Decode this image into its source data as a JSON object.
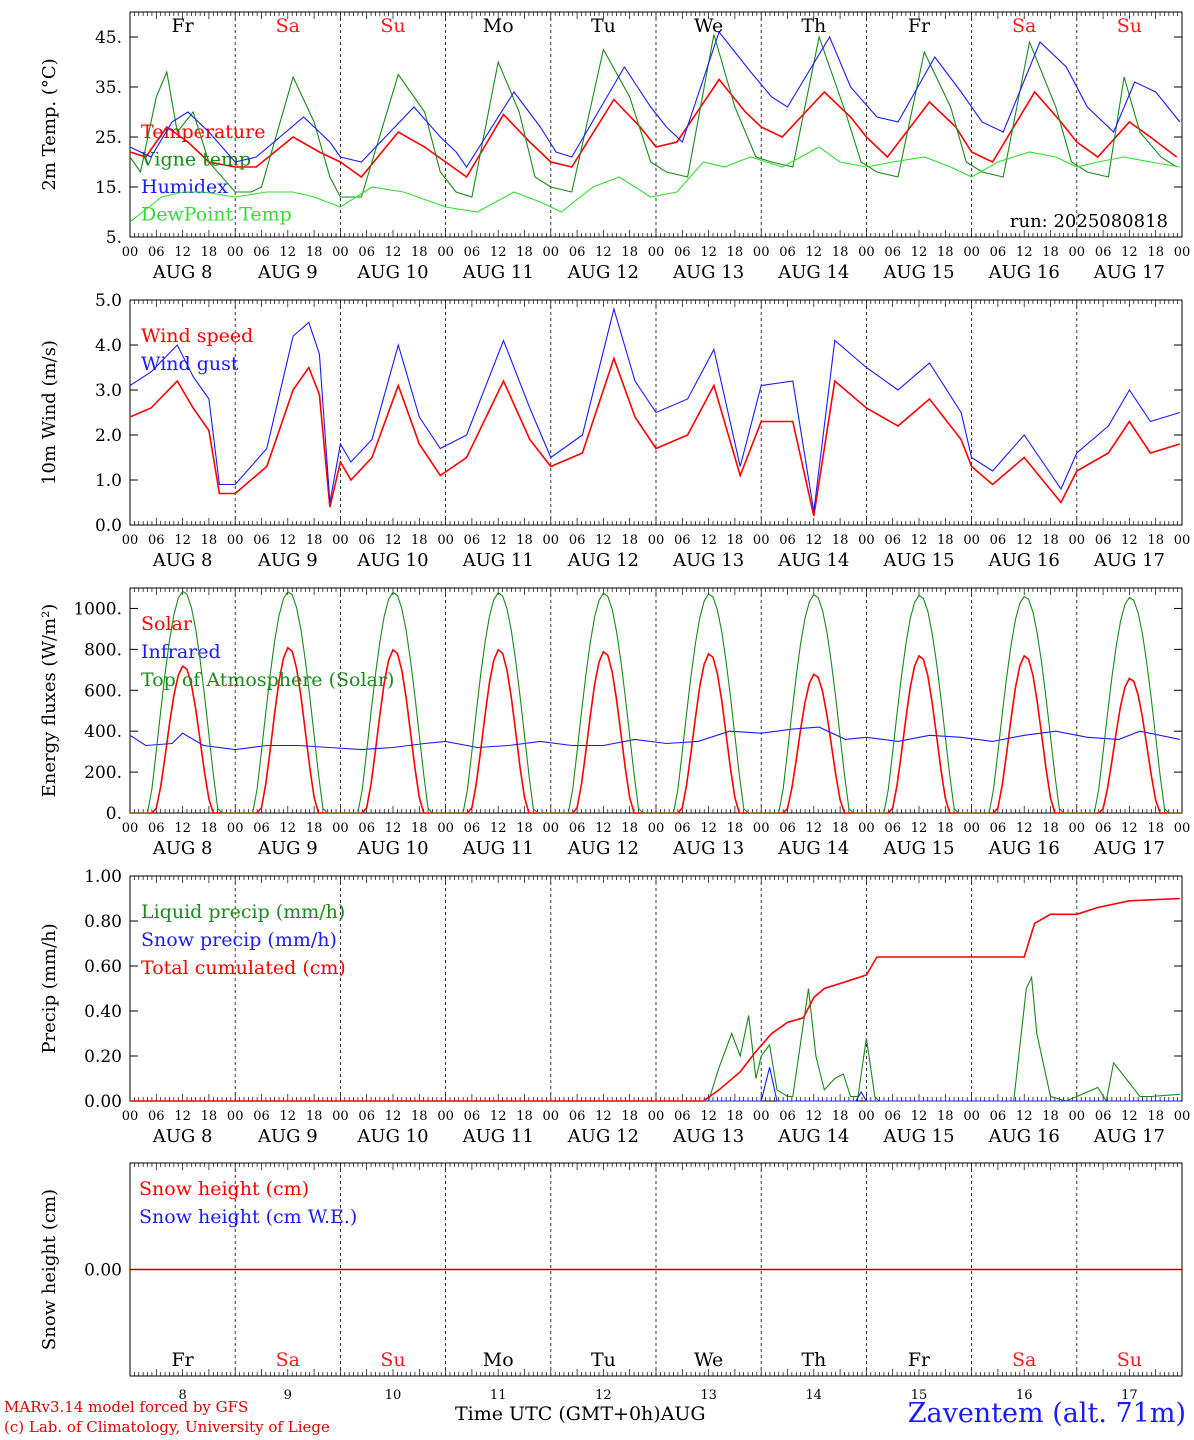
{
  "colors": {
    "red": "#ff0000",
    "green": "#1a8a1a",
    "blue": "#1a1aff",
    "light_green": "#33dd33",
    "weekend": "#ff1a1a",
    "black": "#000000"
  },
  "days": [
    {
      "weekday": "Fr",
      "date": "AUG  8",
      "num": "8",
      "weekend": false
    },
    {
      "weekday": "Sa",
      "date": "AUG  9",
      "num": "9",
      "weekend": true
    },
    {
      "weekday": "Su",
      "date": "AUG 10",
      "num": "10",
      "weekend": true
    },
    {
      "weekday": "Mo",
      "date": "AUG 11",
      "num": "11",
      "weekend": false
    },
    {
      "weekday": "Tu",
      "date": "AUG 12",
      "num": "12",
      "weekend": false
    },
    {
      "weekday": "We",
      "date": "AUG 13",
      "num": "13",
      "weekend": false
    },
    {
      "weekday": "Th",
      "date": "AUG 14",
      "num": "14",
      "weekend": false
    },
    {
      "weekday": "Fr",
      "date": "AUG 15",
      "num": "15",
      "weekend": false
    },
    {
      "weekday": "Sa",
      "date": "AUG 16",
      "num": "16",
      "weekend": true
    },
    {
      "weekday": "Su",
      "date": "AUG 17",
      "num": "17",
      "weekend": true
    }
  ],
  "hour_ticks": [
    "00",
    "06",
    "12",
    "18"
  ],
  "footer": {
    "credits_line1": "MARv3.14 model forced by GFS",
    "credits_line2": "(c) Lab. of Climatology, University of Liege",
    "x_title": "Time UTC (GMT+0h)AUG",
    "location": "Zaventem (alt. 71m)"
  },
  "chart_data": [
    {
      "type": "line",
      "ylabel": "2m Temp. (°C)",
      "ylim": [
        5,
        50
      ],
      "yticks": [
        "45.",
        "35.",
        "25.",
        "15.",
        "5."
      ],
      "ytick_values": [
        45,
        35,
        25,
        15,
        5
      ],
      "x_unit": "days from AUG 8 00 UTC",
      "annotation": "run: 2025080818",
      "series": [
        {
          "name": "Temperature",
          "color": "#ff0000",
          "x": [
            0,
            0.15,
            0.35,
            0.55,
            0.75,
            1.0,
            1.2,
            1.55,
            1.8,
            2.0,
            2.2,
            2.55,
            2.8,
            3.0,
            3.2,
            3.55,
            3.8,
            4.0,
            4.2,
            4.6,
            4.85,
            5.0,
            5.2,
            5.6,
            5.85,
            6.0,
            6.2,
            6.6,
            6.85,
            7.0,
            7.2,
            7.6,
            7.85,
            8.0,
            8.2,
            8.6,
            8.85,
            9.0,
            9.2,
            9.5,
            9.7,
            9.95
          ],
          "y": [
            22,
            21,
            27,
            24,
            20,
            19,
            19,
            25,
            22,
            20,
            17,
            26,
            23,
            20,
            17,
            29.5,
            24,
            20,
            19,
            32.5,
            27,
            23,
            24,
            36.5,
            30,
            27,
            25,
            34,
            29,
            25,
            21,
            32,
            27,
            22,
            20,
            34,
            28,
            24,
            21,
            28,
            25,
            21
          ]
        },
        {
          "name": "Vigne temp",
          "color": "#1a8a1a",
          "x": [
            0,
            0.1,
            0.25,
            0.35,
            0.45,
            0.6,
            0.75,
            1.0,
            1.15,
            1.25,
            1.55,
            1.75,
            1.9,
            2.0,
            2.2,
            2.55,
            2.8,
            2.95,
            3.1,
            3.25,
            3.5,
            3.7,
            3.85,
            4.0,
            4.2,
            4.5,
            4.75,
            4.95,
            5.1,
            5.3,
            5.55,
            5.75,
            5.95,
            6.1,
            6.3,
            6.55,
            6.8,
            6.95,
            7.1,
            7.3,
            7.55,
            7.8,
            7.95,
            8.1,
            8.3,
            8.55,
            8.8,
            8.95,
            9.1,
            9.3,
            9.45,
            9.6,
            9.8,
            9.95
          ],
          "y": [
            21,
            18,
            33,
            38,
            26,
            30,
            20,
            14,
            14,
            15,
            37,
            28,
            17,
            13,
            13,
            37.5,
            30,
            18,
            14,
            13,
            40,
            30,
            17,
            15,
            14,
            42.5,
            33,
            20,
            18,
            17,
            45.5,
            31,
            21,
            20,
            19,
            45,
            30,
            20,
            18,
            17,
            42,
            31,
            20,
            18,
            17,
            44,
            31,
            20,
            18,
            17,
            37,
            26,
            21,
            19
          ]
        },
        {
          "name": "Humidex",
          "color": "#1a1aff",
          "x": [
            0,
            0.2,
            0.4,
            0.55,
            0.75,
            1.0,
            1.2,
            1.65,
            1.9,
            2.0,
            2.2,
            2.7,
            2.95,
            3.1,
            3.2,
            3.65,
            3.9,
            4.05,
            4.2,
            4.7,
            4.95,
            5.1,
            5.25,
            5.6,
            5.9,
            6.1,
            6.25,
            6.65,
            6.85,
            7.1,
            7.3,
            7.65,
            7.9,
            8.1,
            8.3,
            8.65,
            8.9,
            9.1,
            9.35,
            9.55,
            9.75,
            9.98
          ],
          "y": [
            23,
            21,
            28,
            30,
            26,
            20,
            21,
            29,
            24,
            21,
            20,
            31,
            25,
            22,
            19,
            34,
            27,
            22,
            21,
            39,
            31,
            27,
            24,
            46,
            38,
            33,
            31,
            45,
            35,
            29,
            28,
            41,
            34,
            28,
            26,
            44,
            39,
            31,
            26,
            36,
            34,
            28
          ]
        },
        {
          "name": "DewPoint Temp",
          "color": "#33dd33",
          "x": [
            0,
            0.3,
            0.5,
            0.7,
            1.0,
            1.3,
            1.55,
            1.75,
            2.0,
            2.3,
            2.6,
            3.0,
            3.3,
            3.65,
            3.9,
            4.1,
            4.4,
            4.65,
            4.95,
            5.2,
            5.45,
            5.65,
            5.9,
            6.2,
            6.55,
            6.75,
            7.0,
            7.25,
            7.55,
            7.8,
            8.0,
            8.25,
            8.55,
            8.8,
            9.0,
            9.2,
            9.45,
            9.7,
            9.98
          ],
          "y": [
            8,
            13,
            14,
            14,
            13,
            14,
            14,
            13,
            11,
            15,
            14,
            11,
            10,
            14,
            12,
            10,
            15,
            17,
            13,
            14,
            20,
            19,
            21,
            19,
            23,
            20,
            19,
            20,
            21,
            19,
            17,
            20,
            22,
            21,
            19,
            20,
            21,
            20,
            19
          ]
        }
      ]
    },
    {
      "type": "line",
      "ylabel": "10m Wind (m/s)",
      "ylim": [
        0,
        5
      ],
      "yticks": [
        "5.0",
        "4.0",
        "3.0",
        "2.0",
        "1.0",
        "0.0"
      ],
      "ytick_values": [
        5,
        4,
        3,
        2,
        1,
        0
      ],
      "x_unit": "days from AUG 8 00 UTC",
      "series": [
        {
          "name": "Wind speed",
          "color": "#ff0000",
          "x": [
            0,
            0.2,
            0.45,
            0.6,
            0.75,
            0.85,
            1.0,
            1.3,
            1.55,
            1.7,
            1.8,
            1.9,
            2.0,
            2.1,
            2.3,
            2.55,
            2.75,
            2.95,
            3.2,
            3.55,
            3.8,
            4.0,
            4.3,
            4.6,
            4.8,
            5.0,
            5.3,
            5.55,
            5.8,
            6.0,
            6.3,
            6.5,
            6.7,
            7.0,
            7.3,
            7.6,
            7.9,
            8.0,
            8.2,
            8.5,
            8.85,
            9.0,
            9.3,
            9.5,
            9.7,
            9.98
          ],
          "y": [
            2.4,
            2.6,
            3.2,
            2.6,
            2.1,
            0.7,
            0.7,
            1.3,
            3.0,
            3.5,
            2.9,
            0.4,
            1.4,
            1.0,
            1.5,
            3.1,
            1.8,
            1.1,
            1.5,
            3.2,
            1.9,
            1.3,
            1.6,
            3.7,
            2.4,
            1.7,
            2.0,
            3.1,
            1.1,
            2.3,
            2.3,
            0.2,
            3.2,
            2.6,
            2.2,
            2.8,
            1.9,
            1.3,
            0.9,
            1.5,
            0.5,
            1.2,
            1.6,
            2.3,
            1.6,
            1.8
          ]
        },
        {
          "name": "Wind gust",
          "color": "#1a1aff",
          "x": [
            0,
            0.2,
            0.45,
            0.6,
            0.75,
            0.85,
            1.0,
            1.3,
            1.55,
            1.7,
            1.8,
            1.9,
            2.0,
            2.1,
            2.3,
            2.55,
            2.75,
            2.95,
            3.2,
            3.55,
            3.8,
            4.0,
            4.3,
            4.6,
            4.8,
            5.0,
            5.3,
            5.55,
            5.8,
            6.0,
            6.3,
            6.5,
            6.7,
            7.0,
            7.3,
            7.6,
            7.9,
            8.0,
            8.2,
            8.5,
            8.85,
            9.0,
            9.3,
            9.5,
            9.7,
            9.98
          ],
          "y": [
            3.1,
            3.4,
            4.0,
            3.3,
            2.8,
            0.9,
            0.9,
            1.7,
            4.2,
            4.5,
            3.8,
            0.5,
            1.8,
            1.4,
            1.9,
            4.0,
            2.4,
            1.7,
            2.0,
            4.1,
            2.6,
            1.5,
            2.0,
            4.8,
            3.2,
            2.5,
            2.8,
            3.9,
            1.3,
            3.1,
            3.2,
            0.3,
            4.1,
            3.5,
            3.0,
            3.6,
            2.5,
            1.5,
            1.2,
            2.0,
            0.8,
            1.6,
            2.2,
            3.0,
            2.3,
            2.5
          ]
        }
      ]
    },
    {
      "type": "line",
      "ylabel": "Energy fluxes (W/m²)",
      "ylim": [
        0,
        1100
      ],
      "yticks": [
        "1000.",
        "800.",
        "600.",
        "400.",
        "200.",
        "0."
      ],
      "ytick_values": [
        1000,
        800,
        600,
        400,
        200,
        0
      ],
      "x_unit": "days from AUG 8 00 UTC",
      "series": [
        {
          "name": "Solar",
          "color": "#ff0000",
          "peaks": [
            720,
            810,
            800,
            800,
            790,
            780,
            680,
            770,
            770,
            660
          ]
        },
        {
          "name": "Infrared",
          "color": "#1a1aff",
          "x": [
            0,
            0.15,
            0.4,
            0.5,
            0.7,
            1.0,
            1.3,
            1.6,
            1.9,
            2.2,
            2.5,
            2.8,
            3.0,
            3.3,
            3.6,
            3.9,
            4.2,
            4.5,
            4.8,
            5.1,
            5.4,
            5.7,
            6.0,
            6.3,
            6.55,
            6.8,
            7.0,
            7.3,
            7.6,
            7.9,
            8.2,
            8.5,
            8.8,
            9.1,
            9.4,
            9.6,
            9.98
          ],
          "y": [
            380,
            330,
            340,
            390,
            330,
            310,
            330,
            330,
            320,
            310,
            320,
            340,
            350,
            320,
            330,
            350,
            330,
            330,
            360,
            340,
            350,
            400,
            390,
            410,
            420,
            360,
            370,
            350,
            380,
            370,
            350,
            380,
            400,
            370,
            360,
            400,
            360
          ]
        },
        {
          "name": "Top of Atmosphere (Solar)",
          "color": "#1a8a1a",
          "peaks": [
            1085,
            1083,
            1080,
            1078,
            1075,
            1072,
            1068,
            1065,
            1060,
            1055
          ]
        }
      ]
    },
    {
      "type": "line",
      "ylabel": "Precip (mm/h)",
      "ylim": [
        0,
        1
      ],
      "yticks": [
        "1.00",
        "0.80",
        "0.60",
        "0.40",
        "0.20",
        "0.00"
      ],
      "ytick_values": [
        1.0,
        0.8,
        0.6,
        0.4,
        0.2,
        0.0
      ],
      "x_unit": "days from AUG 8 00 UTC",
      "series": [
        {
          "name": "Liquid precip (mm/h)",
          "color": "#1a8a1a",
          "x": [
            0,
            5.5,
            5.6,
            5.72,
            5.8,
            5.88,
            5.95,
            6.0,
            6.08,
            6.15,
            6.25,
            6.3,
            6.45,
            6.52,
            6.6,
            6.7,
            6.78,
            6.85,
            6.92,
            7.0,
            7.08,
            7.12,
            7.18,
            7.25,
            8.4,
            8.52,
            8.57,
            8.62,
            8.75,
            8.9,
            9.0,
            9.2,
            9.28,
            9.35,
            9.5,
            9.6,
            9.7,
            9.98
          ],
          "y": [
            0,
            0,
            0.15,
            0.3,
            0.2,
            0.38,
            0.1,
            0.2,
            0.25,
            0.05,
            0.02,
            0.02,
            0.5,
            0.2,
            0.05,
            0.1,
            0.12,
            0.02,
            0.02,
            0.28,
            0.02,
            0.0,
            0.0,
            0.0,
            0.0,
            0.5,
            0.55,
            0.3,
            0.02,
            0.0,
            0.02,
            0.06,
            0.0,
            0.17,
            0.08,
            0.02,
            0.02,
            0.03
          ]
        },
        {
          "name": "Snow precip (mm/h)",
          "color": "#1a1aff",
          "x": [
            0,
            6.0,
            6.08,
            6.15,
            6.9,
            6.95,
            7.0,
            9.98
          ],
          "y": [
            0,
            0,
            0.15,
            0,
            0,
            0.04,
            0,
            0
          ]
        },
        {
          "name": "Total cumulated (cm)",
          "color": "#ff0000",
          "x": [
            0,
            5.45,
            5.6,
            5.8,
            5.95,
            6.1,
            6.25,
            6.4,
            6.5,
            6.6,
            6.8,
            7.0,
            7.1,
            7.5,
            8.0,
            8.5,
            8.6,
            8.75,
            9.0,
            9.2,
            9.5,
            9.98
          ],
          "y": [
            0,
            0,
            0.05,
            0.13,
            0.22,
            0.3,
            0.35,
            0.37,
            0.46,
            0.5,
            0.53,
            0.56,
            0.64,
            0.64,
            0.64,
            0.64,
            0.79,
            0.83,
            0.83,
            0.86,
            0.89,
            0.9
          ]
        }
      ]
    },
    {
      "type": "line",
      "ylabel": "Snow height (cm)",
      "ylim": [
        -1,
        1
      ],
      "yticks": [
        "0.00"
      ],
      "ytick_values": [
        0
      ],
      "x_unit": "days from AUG 8 00 UTC",
      "series": [
        {
          "name": "Snow height (cm)",
          "color": "#ff0000",
          "x": [
            0,
            10
          ],
          "y": [
            0,
            0
          ]
        },
        {
          "name": "Snow height (cm W.E.)",
          "color": "#1a1aff",
          "x": [
            0,
            10
          ],
          "y": [
            0,
            0
          ]
        }
      ]
    }
  ]
}
